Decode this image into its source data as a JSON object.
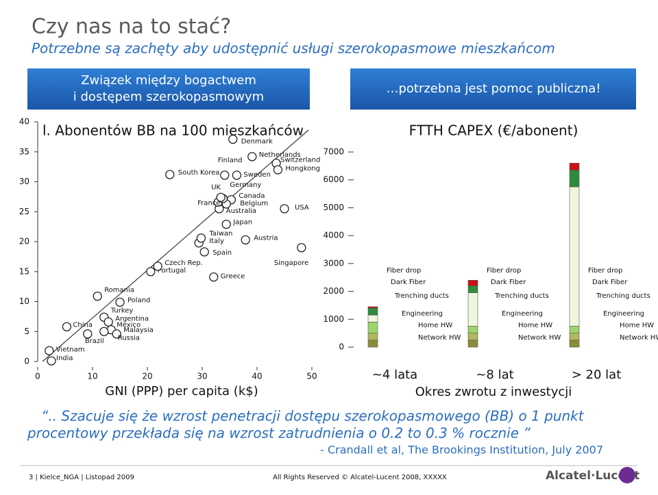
{
  "header": {
    "title": "Czy nas na to stać?",
    "subtitle": "Potrzebne są zachęty aby udostępnić usługi szerokopasmowe mieszkańcom"
  },
  "boxes": [
    {
      "lines": [
        "Związek między bogactwem",
        "i dostępem szerokopasmowym"
      ]
    },
    {
      "lines": [
        "…potrzebna jest pomoc publiczna!"
      ]
    }
  ],
  "chart_data": [
    {
      "type": "scatter",
      "title": "l. Abonentów BB na 100 mieszkańców",
      "x_label": "GNI (PPP) per capita (k$)",
      "point_labels": [
        "India",
        "Vietnam",
        "China",
        "Brazil",
        "Romania",
        "Poland",
        "Turkey",
        "Argentina",
        "Mexico",
        "Malaysia",
        "Russia",
        "Portugal",
        "Czech Rep.",
        "Greece",
        "Spain",
        "Italy",
        "Taiwan",
        "Austria",
        "Japan",
        "Australia",
        "France",
        "Canada",
        "Belgium",
        "Germany",
        "UK",
        "South Korea",
        "Finland",
        "Sweden",
        "Denmark",
        "Netherlands",
        "Switzerland",
        "Hongkong",
        "USA",
        "Singapore"
      ],
      "x": [
        2.5,
        2.1,
        5.3,
        9.1,
        10.9,
        15.0,
        12.1,
        12.9,
        13.4,
        14.4,
        12.1,
        20.6,
        21.9,
        32.1,
        30.4,
        29.4,
        29.8,
        37.9,
        34.4,
        33.1,
        32.9,
        35.3,
        34.4,
        33.8,
        33.4,
        24.1,
        34.1,
        36.3,
        35.6,
        39.1,
        43.5,
        43.8,
        45.0,
        48.1
      ],
      "values": [
        0.1,
        1.8,
        5.8,
        4.6,
        10.9,
        9.9,
        7.4,
        6.6,
        5.3,
        4.6,
        5.0,
        15.0,
        15.9,
        14.1,
        18.3,
        19.8,
        20.6,
        20.3,
        22.9,
        25.5,
        26.6,
        27.0,
        26.3,
        27.2,
        27.4,
        31.2,
        31.1,
        31.1,
        37.1,
        34.2,
        33.1,
        32.0,
        25.5,
        19.0
      ],
      "xlim": [
        0,
        50
      ],
      "xticks": [
        0,
        10,
        20,
        30,
        40,
        50
      ],
      "ylim": [
        0,
        40
      ],
      "yticks": [
        0,
        5,
        10,
        15,
        20,
        25,
        30,
        35,
        40
      ]
    },
    {
      "type": "bar",
      "title": "FTTH CAPEX (€/abonent)",
      "x_label": "Okres zwrotu z inwestycji",
      "categories": [
        "~4 lata",
        "~8 lat",
        "> 20 lat"
      ],
      "series": [
        {
          "name": "Network HW",
          "color": "#8c8c3c",
          "values": [
            250,
            250,
            250
          ]
        },
        {
          "name": "Home HW",
          "color": "#b0b860",
          "values": [
            250,
            250,
            250
          ]
        },
        {
          "name": "Engineering",
          "color": "#9fd46a",
          "values": [
            400,
            250,
            250
          ]
        },
        {
          "name": "Trenching ducts",
          "color": "#eef6dc",
          "values": [
            250,
            1200,
            5000
          ]
        },
        {
          "name": "Dark Fiber",
          "color": "#2e8b3a",
          "values": [
            250,
            250,
            600
          ]
        },
        {
          "name": "Fiber drop",
          "color": "#cc1010",
          "values": [
            50,
            200,
            250
          ]
        }
      ],
      "ylim": [
        0,
        7000
      ],
      "yticks": [
        0,
        1000,
        2000,
        3000,
        4000,
        5000,
        6000,
        7000
      ]
    }
  ],
  "quote": {
    "lines": [
      "“.. Szacuje się że wzrost penetracji dostępu szerokopasmowego (BB) o 1 punkt",
      "procentowy przekłada się na wzrost zatrudnienia o 0.2 to 0.3 % rocznie ”"
    ],
    "source": "- Crandall et al, The Brookings Institution, July 2007"
  },
  "footer": {
    "left": "3 | Kielce_NGA | Listopad 2009",
    "center": "All Rights Reserved © Alcatel-Lucent 2008, XXXXX",
    "logo": "Alcatel·Lucent"
  }
}
